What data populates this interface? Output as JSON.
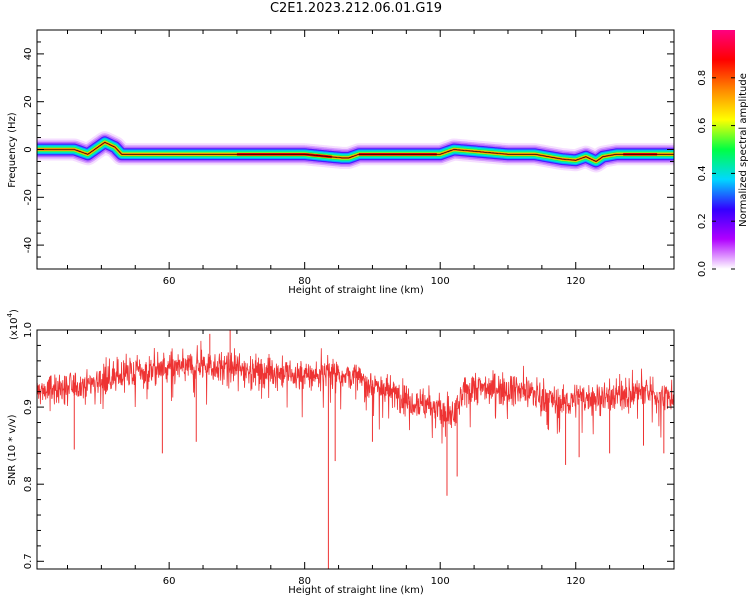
{
  "figure": {
    "title": "C2E1.2023.212.06.01.G19"
  },
  "chart_data": [
    {
      "type": "heatmap",
      "title": "",
      "xlabel": "Height of straight line (km)",
      "ylabel": "Frequency (Hz)",
      "xlim": [
        40.5,
        134.5
      ],
      "ylim": [
        -50,
        50
      ],
      "x_ticks": [
        "60",
        "80",
        "100",
        "120"
      ],
      "y_ticks": [
        "40",
        "20",
        "0",
        "-20",
        "-40"
      ],
      "colorbar": {
        "label": "Normalized spectral amplitude",
        "range": [
          0,
          1
        ],
        "ticks": [
          "0.0",
          "0.2",
          "0.4",
          "0.6",
          "0.8"
        ],
        "colors": [
          "#ffffff",
          "#b000ff",
          "#3300ff",
          "#00d8ff",
          "#00ff44",
          "#ffff00",
          "#ff8800",
          "#ff0000",
          "#ff0080"
        ]
      },
      "peak_track": {
        "x": [
          40.5,
          46,
          48,
          50.5,
          52,
          53,
          56,
          60,
          70,
          80,
          85.5,
          86.5,
          88,
          95,
          100,
          102,
          110,
          114,
          116,
          118,
          120,
          121.5,
          123,
          124,
          126,
          130,
          134.5
        ],
        "freq": [
          0,
          0,
          -2,
          3,
          1,
          -2,
          -2,
          -2,
          -2,
          -2,
          -3.5,
          -3.5,
          -2,
          -2,
          -2,
          0,
          -2,
          -2,
          -3,
          -4,
          -4.5,
          -3,
          -5,
          -3,
          -2,
          -2,
          -2
        ]
      }
    },
    {
      "type": "line",
      "title": "",
      "xlabel": "Height of straight line (km)",
      "ylabel": "SNR (10 * v/v)",
      "multiplier_label": "(x10",
      "multiplier_exponent": "4",
      "xlim": [
        40.5,
        134.5
      ],
      "ylim": [
        0.69,
        1.0
      ],
      "x_ticks": [
        "60",
        "80",
        "100",
        "120"
      ],
      "y_ticks": [
        "1.0",
        "0.9",
        "0.8",
        "0.7"
      ],
      "series": [
        {
          "color": "#ee3333",
          "baseline_x": [
            40.5,
            45,
            50,
            55,
            60,
            65,
            70,
            75,
            80,
            85,
            90,
            95,
            98,
            100,
            101,
            102,
            104,
            110,
            115,
            118,
            120,
            125,
            130,
            134.5
          ],
          "baseline_y": [
            0.92,
            0.925,
            0.935,
            0.945,
            0.95,
            0.955,
            0.95,
            0.945,
            0.94,
            0.945,
            0.93,
            0.91,
            0.905,
            0.895,
            0.885,
            0.89,
            0.925,
            0.925,
            0.915,
            0.905,
            0.91,
            0.915,
            0.92,
            0.91
          ],
          "spikes": [
            {
              "x": 83.5,
              "y": 0.69
            },
            {
              "x": 84.5,
              "y": 0.83
            },
            {
              "x": 101.0,
              "y": 0.785
            },
            {
              "x": 102.5,
              "y": 0.81
            },
            {
              "x": 59.0,
              "y": 0.84
            },
            {
              "x": 46.0,
              "y": 0.845
            },
            {
              "x": 120.5,
              "y": 0.835
            },
            {
              "x": 118.5,
              "y": 0.825
            },
            {
              "x": 125.0,
              "y": 0.84
            },
            {
              "x": 133.0,
              "y": 0.84
            },
            {
              "x": 130.0,
              "y": 0.85
            },
            {
              "x": 64.0,
              "y": 0.855
            },
            {
              "x": 69.0,
              "y": 1.0
            },
            {
              "x": 66.0,
              "y": 0.995
            },
            {
              "x": 90.0,
              "y": 0.855
            }
          ]
        }
      ]
    }
  ]
}
